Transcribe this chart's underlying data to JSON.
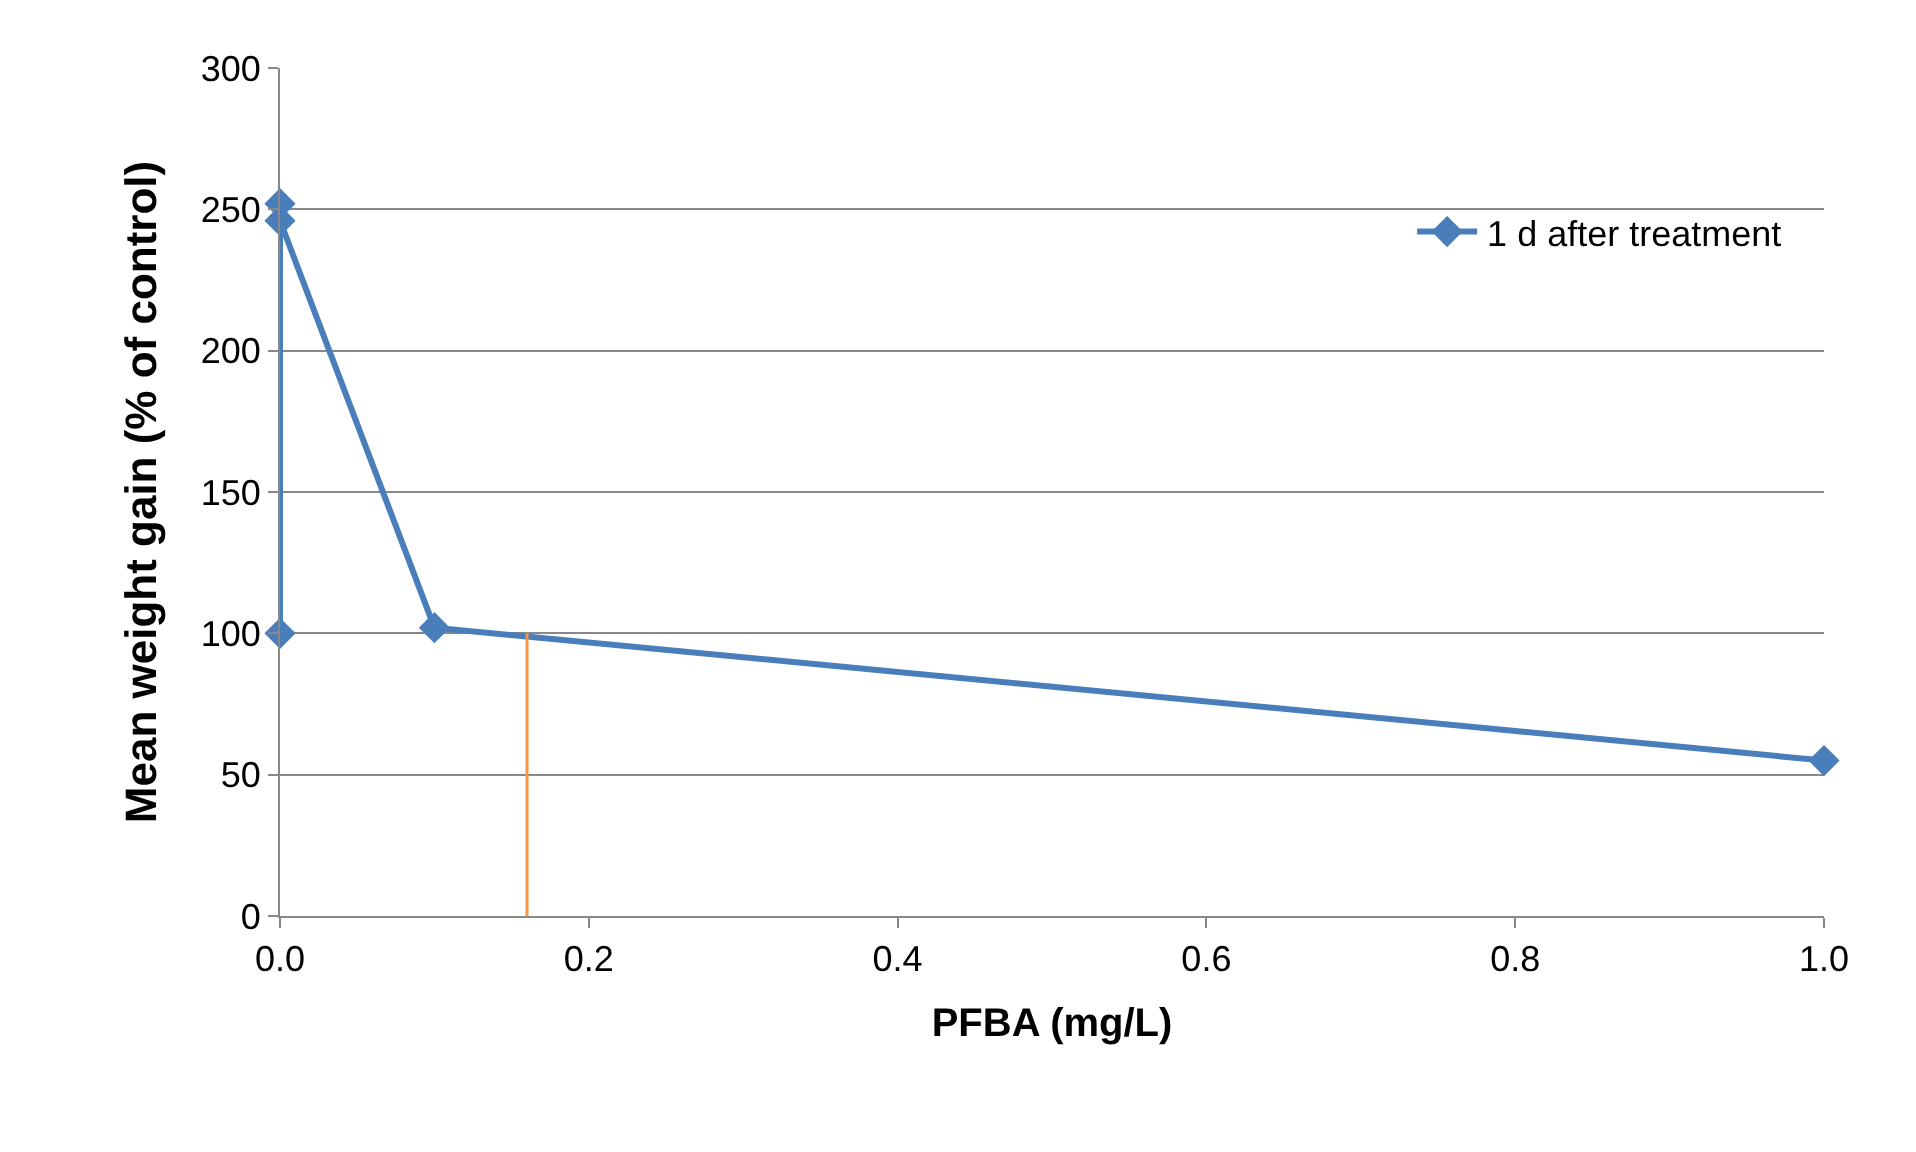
{
  "chart_data": {
    "type": "line",
    "xlabel": "PFBA (mg/L)",
    "ylabel": "Mean weight gain (% of control)",
    "series": [
      {
        "name": "1 d after treatment",
        "color": "#4a7ebb",
        "x": [
          0,
          0,
          0,
          0.1,
          1
        ],
        "values": [
          100,
          252,
          246,
          102,
          55
        ],
        "marker": "diamond"
      },
      {
        "color": "#f79646",
        "x": [
          0.16,
          0.16
        ],
        "values": [
          0,
          100
        ],
        "marker": "none"
      }
    ],
    "xlim": [
      0,
      1
    ],
    "xticks": [
      {
        "value": 0,
        "label": "0.0"
      },
      {
        "value": 0.2,
        "label": "0.2"
      },
      {
        "value": 0.4,
        "label": "0.4"
      },
      {
        "value": 0.6,
        "label": "0.6"
      },
      {
        "value": 0.8,
        "label": "0.8"
      },
      {
        "value": 1,
        "label": "1.0"
      }
    ],
    "ylim": [
      0,
      300
    ],
    "yticks": [
      0,
      50,
      100,
      150,
      200,
      250,
      300
    ],
    "grid": "y",
    "legend": "top right",
    "line_style": "solid"
  }
}
